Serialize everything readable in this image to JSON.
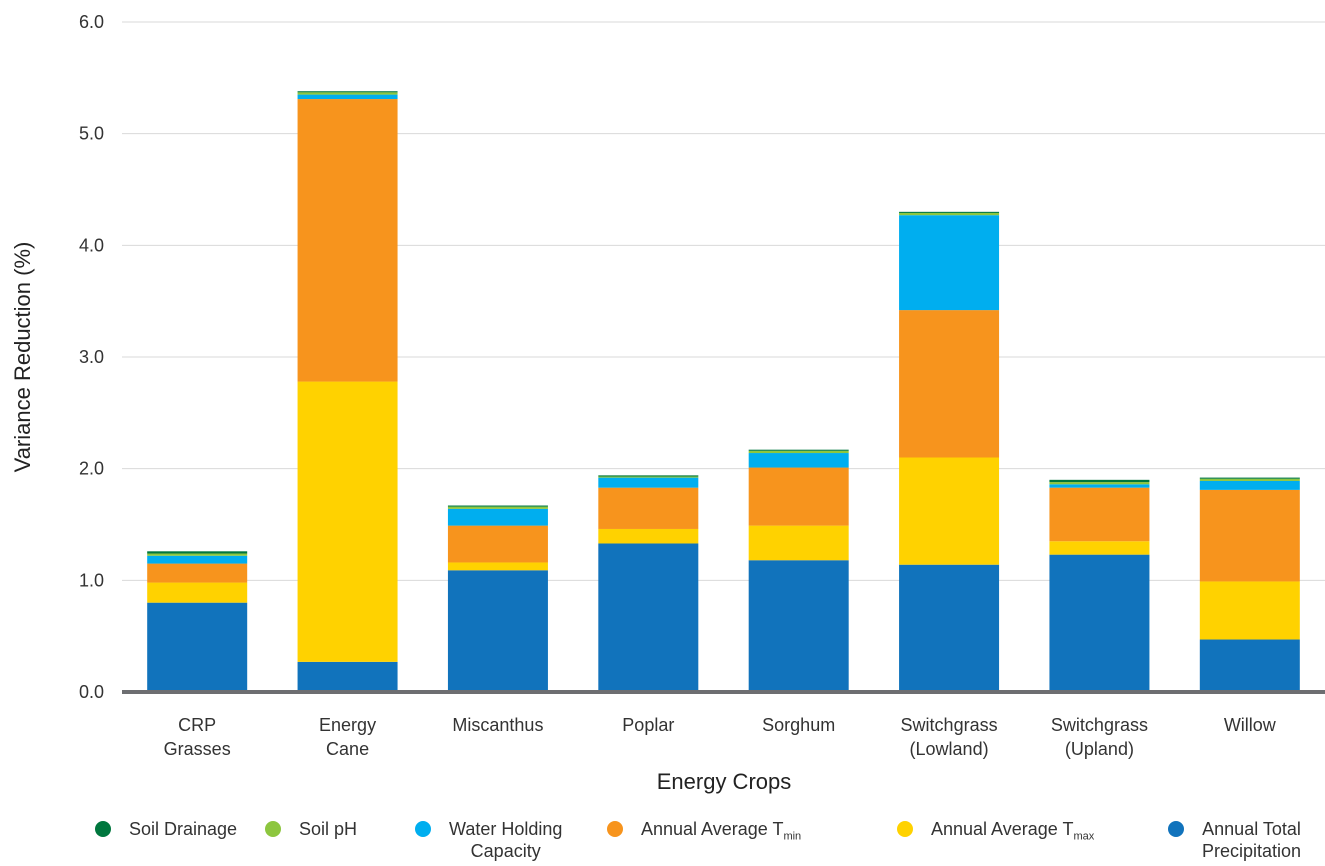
{
  "chart_data": {
    "type": "bar",
    "stacked": true,
    "title": "",
    "xlabel": "Energy Crops",
    "ylabel": "Variance Reduction (%)",
    "ylim": [
      0,
      6
    ],
    "yticks": [
      "0.0",
      "1.0",
      "2.0",
      "3.0",
      "4.0",
      "5.0",
      "6.0"
    ],
    "grid": true,
    "legend_position": "bottom",
    "categories": [
      "CRP\nGrasses",
      "Energy\nCane",
      "Miscanthus",
      "Poplar",
      "Sorghum",
      "Switchgrass\n(Lowland)",
      "Switchgrass\n(Upland)",
      "Willow"
    ],
    "series": [
      {
        "name": "Annual Total\nPrecipitation",
        "color": "#1173bc",
        "values": [
          0.8,
          0.27,
          1.09,
          1.33,
          1.18,
          1.14,
          1.23,
          0.47
        ]
      },
      {
        "name": "Annual Average T",
        "sub": "max",
        "color": "#ffd200",
        "values": [
          0.18,
          2.51,
          0.07,
          0.13,
          0.31,
          0.96,
          0.12,
          0.52
        ]
      },
      {
        "name": "Annual Average T",
        "sub": "min",
        "color": "#f7941d",
        "values": [
          0.17,
          2.53,
          0.33,
          0.37,
          0.52,
          1.32,
          0.48,
          0.82
        ]
      },
      {
        "name": "Water Holding\nCapacity",
        "color": "#00aeef",
        "values": [
          0.07,
          0.04,
          0.15,
          0.09,
          0.13,
          0.85,
          0.03,
          0.08
        ]
      },
      {
        "name": "Soil pH",
        "color": "#8dc63f",
        "values": [
          0.02,
          0.02,
          0.02,
          0.01,
          0.02,
          0.02,
          0.02,
          0.02
        ]
      },
      {
        "name": "Soil Drainage",
        "color": "#00773e",
        "values": [
          0.02,
          0.01,
          0.01,
          0.01,
          0.01,
          0.01,
          0.02,
          0.01
        ]
      }
    ],
    "legend_order": [
      5,
      4,
      3,
      2,
      1,
      0
    ]
  }
}
